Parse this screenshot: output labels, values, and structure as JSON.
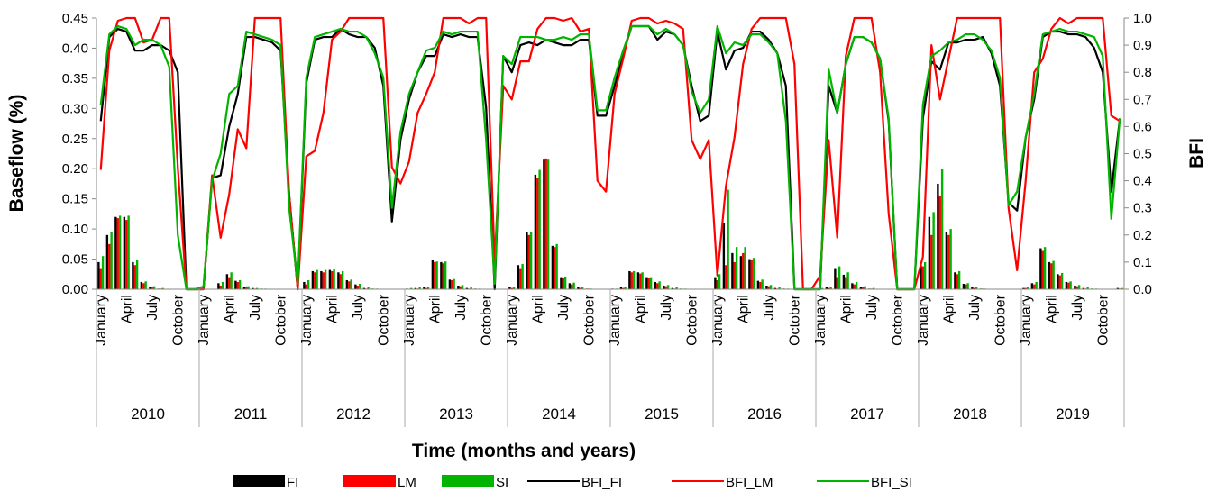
{
  "chart_data": {
    "type": "bar+line",
    "title": "",
    "xlabel": "Time (months and years)",
    "ylabel_left": "Baseflow (%)",
    "ylabel_right": "BFI",
    "ylim_left": [
      0,
      0.45
    ],
    "ylim_right": [
      0,
      1.0
    ],
    "yticks_left": [
      "0.00",
      "0.05",
      "0.10",
      "0.15",
      "0.20",
      "0.25",
      "0.30",
      "0.35",
      "0.40",
      "0.45"
    ],
    "yticks_right": [
      "0.0",
      "0.1",
      "0.2",
      "0.3",
      "0.4",
      "0.5",
      "0.6",
      "0.7",
      "0.8",
      "0.9",
      "1.0"
    ],
    "grid": false,
    "legend_position": "bottom",
    "years": [
      "2010",
      "2011",
      "2012",
      "2013",
      "2014",
      "2015",
      "2016",
      "2017",
      "2018",
      "2019"
    ],
    "month_labels": [
      "January",
      "April",
      "July",
      "October"
    ],
    "colors": {
      "FI": "#000000",
      "LM": "#ff0000",
      "SI": "#00b400"
    },
    "bar_series": [
      {
        "name": "FI",
        "axis": "left",
        "values": [
          0.045,
          0.09,
          0.12,
          0.12,
          0.045,
          0.012,
          0.004,
          0.001,
          0,
          0,
          0,
          0,
          0,
          0,
          0.01,
          0.025,
          0.014,
          0.004,
          0.002,
          0.001,
          0,
          0,
          0,
          0,
          0.012,
          0.03,
          0.03,
          0.032,
          0.028,
          0.015,
          0.008,
          0.002,
          0.001,
          0,
          0,
          0,
          0.001,
          0.002,
          0.003,
          0.048,
          0.045,
          0.016,
          0.006,
          0.002,
          0.001,
          0,
          0,
          0,
          0.003,
          0.04,
          0.095,
          0.19,
          0.215,
          0.072,
          0.02,
          0.01,
          0.003,
          0.001,
          0,
          0,
          0.001,
          0.003,
          0.03,
          0.028,
          0.02,
          0.012,
          0.006,
          0.002,
          0.001,
          0,
          0,
          0,
          0.02,
          0.11,
          0.06,
          0.055,
          0.05,
          0.014,
          0.006,
          0.002,
          0.001,
          0,
          0,
          0,
          0.001,
          0.003,
          0.035,
          0.024,
          0.01,
          0.004,
          0.001,
          0,
          0,
          0,
          0,
          0,
          0.04,
          0.12,
          0.175,
          0.095,
          0.028,
          0.009,
          0.003,
          0.001,
          0,
          0,
          0,
          0,
          0.002,
          0.01,
          0.068,
          0.045,
          0.025,
          0.012,
          0.006,
          0.002,
          0.001,
          0,
          0,
          0.002
        ]
      },
      {
        "name": "LM",
        "axis": "left",
        "values": [
          0.035,
          0.075,
          0.118,
          0.115,
          0.04,
          0.01,
          0.003,
          0.001,
          0,
          0,
          0,
          0,
          0,
          0,
          0.006,
          0.02,
          0.012,
          0.003,
          0.001,
          0,
          0,
          0,
          0,
          0,
          0.008,
          0.028,
          0.028,
          0.03,
          0.025,
          0.013,
          0.006,
          0.001,
          0,
          0,
          0,
          0,
          0,
          0.001,
          0.002,
          0.045,
          0.043,
          0.015,
          0.005,
          0.001,
          0,
          0,
          0,
          0,
          0.002,
          0.035,
          0.09,
          0.185,
          0.217,
          0.07,
          0.018,
          0.008,
          0.002,
          0.001,
          0,
          0,
          0,
          0.002,
          0.028,
          0.026,
          0.018,
          0.01,
          0.005,
          0.001,
          0,
          0,
          0,
          0,
          0.015,
          0.04,
          0.045,
          0.06,
          0.048,
          0.012,
          0.005,
          0.001,
          0,
          0,
          0,
          0,
          0,
          0.002,
          0.02,
          0.02,
          0.008,
          0.003,
          0.001,
          0,
          0,
          0,
          0,
          0,
          0.038,
          0.09,
          0.155,
          0.09,
          0.025,
          0.008,
          0.002,
          0.001,
          0,
          0,
          0,
          0,
          0.002,
          0.008,
          0.065,
          0.043,
          0.023,
          0.011,
          0.005,
          0.001,
          0,
          0,
          0,
          0.001
        ]
      },
      {
        "name": "SI",
        "axis": "left",
        "values": [
          0.055,
          0.095,
          0.122,
          0.122,
          0.048,
          0.013,
          0.005,
          0.002,
          0,
          0,
          0,
          0,
          0,
          0,
          0.012,
          0.028,
          0.015,
          0.005,
          0.002,
          0.001,
          0,
          0,
          0,
          0,
          0.015,
          0.032,
          0.032,
          0.033,
          0.03,
          0.016,
          0.009,
          0.003,
          0.001,
          0,
          0,
          0,
          0.002,
          0.003,
          0.004,
          0.046,
          0.046,
          0.017,
          0.007,
          0.003,
          0.001,
          0,
          0,
          0,
          0.004,
          0.042,
          0.095,
          0.198,
          0.215,
          0.075,
          0.021,
          0.011,
          0.004,
          0.001,
          0,
          0,
          0.001,
          0.004,
          0.03,
          0.028,
          0.02,
          0.013,
          0.007,
          0.003,
          0.001,
          0,
          0,
          0,
          0.025,
          0.165,
          0.07,
          0.07,
          0.052,
          0.016,
          0.007,
          0.003,
          0.001,
          0,
          0,
          0,
          0.002,
          0.004,
          0.038,
          0.028,
          0.012,
          0.005,
          0.002,
          0,
          0,
          0,
          0,
          0,
          0.045,
          0.128,
          0.2,
          0.1,
          0.03,
          0.01,
          0.004,
          0.001,
          0,
          0,
          0,
          0,
          0.003,
          0.012,
          0.07,
          0.047,
          0.027,
          0.013,
          0.007,
          0.003,
          0.001,
          0,
          0,
          0.002
        ]
      }
    ],
    "line_series": [
      {
        "name": "BFI_FI",
        "axis": "right",
        "values": [
          0.62,
          0.93,
          0.96,
          0.95,
          0.88,
          0.88,
          0.9,
          0.9,
          0.88,
          0.8,
          0,
          0,
          0,
          0.41,
          0.42,
          0.6,
          0.72,
          0.93,
          0.93,
          0.92,
          0.91,
          0.88,
          0.35,
          0,
          0.76,
          0.92,
          0.93,
          0.93,
          0.96,
          0.94,
          0.93,
          0.93,
          0.89,
          0.75,
          0.25,
          0.55,
          0.7,
          0.8,
          0.86,
          0.86,
          0.94,
          0.93,
          0.94,
          0.93,
          0.93,
          0.67,
          0,
          0.86,
          0.8,
          0.9,
          0.91,
          0.9,
          0.92,
          0.91,
          0.9,
          0.9,
          0.92,
          0.92,
          0.64,
          0.64,
          0.75,
          0.87,
          0.97,
          0.97,
          0.97,
          0.92,
          0.95,
          0.94,
          0.9,
          0.75,
          0.62,
          0.64,
          0.95,
          0.81,
          0.88,
          0.89,
          0.95,
          0.95,
          0.92,
          0.87,
          0.75,
          0,
          0,
          0,
          0,
          0.75,
          0.65,
          0.83,
          0.93,
          0.93,
          0.91,
          0.85,
          0.62,
          0,
          0,
          0,
          0.63,
          0.84,
          0.81,
          0.91,
          0.91,
          0.92,
          0.92,
          0.93,
          0.87,
          0.75,
          0.32,
          0.29,
          0.56,
          0.7,
          0.93,
          0.95,
          0.95,
          0.94,
          0.94,
          0.93,
          0.89,
          0.8,
          0.36,
          0.63
        ]
      },
      {
        "name": "BFI_LM",
        "axis": "right",
        "values": [
          0.44,
          0.88,
          0.99,
          1.0,
          1.0,
          0.91,
          0.92,
          1.0,
          1.0,
          0.45,
          0,
          0,
          0,
          0.42,
          0.19,
          0.35,
          0.59,
          0.52,
          1.0,
          1.0,
          1.0,
          1.0,
          0.35,
          0,
          0.49,
          0.51,
          0.65,
          0.92,
          0.95,
          1.0,
          1.0,
          1.0,
          1.0,
          1.0,
          0.45,
          0.39,
          0.47,
          0.65,
          0.72,
          0.8,
          1.0,
          1.0,
          1.0,
          0.98,
          1.0,
          1.0,
          0.1,
          0.75,
          0.7,
          0.84,
          0.84,
          0.96,
          1.0,
          1.0,
          0.99,
          1.0,
          0.95,
          0.96,
          0.4,
          0.36,
          0.72,
          0.85,
          0.99,
          1.0,
          1.0,
          0.98,
          0.99,
          0.98,
          0.96,
          0.55,
          0.48,
          0.55,
          0.05,
          0.38,
          0.56,
          0.83,
          0.96,
          1.0,
          1.0,
          1.0,
          1.0,
          0.83,
          0,
          0,
          0.05,
          0.55,
          0.19,
          0.86,
          1.0,
          1.0,
          1.0,
          0.8,
          0.28,
          0,
          0,
          0,
          0.12,
          0.9,
          0.7,
          0.85,
          1.0,
          1.0,
          1.0,
          1.0,
          1.0,
          1.0,
          0.3,
          0.07,
          0.4,
          0.8,
          0.85,
          0.96,
          1.0,
          0.98,
          1.0,
          1.0,
          1.0,
          1.0,
          0.64,
          0.62
        ]
      },
      {
        "name": "BFI_SI",
        "axis": "right",
        "values": [
          0.68,
          0.94,
          0.97,
          0.96,
          0.9,
          0.92,
          0.92,
          0.9,
          0.82,
          0.2,
          0,
          0,
          0.01,
          0.4,
          0.5,
          0.72,
          0.75,
          0.95,
          0.94,
          0.93,
          0.92,
          0.9,
          0.3,
          0.02,
          0.78,
          0.93,
          0.94,
          0.95,
          0.96,
          0.95,
          0.95,
          0.93,
          0.87,
          0.78,
          0.3,
          0.58,
          0.72,
          0.8,
          0.88,
          0.89,
          0.95,
          0.94,
          0.95,
          0.95,
          0.95,
          0.55,
          0.02,
          0.86,
          0.83,
          0.93,
          0.93,
          0.93,
          0.92,
          0.92,
          0.93,
          0.92,
          0.94,
          0.94,
          0.66,
          0.66,
          0.78,
          0.88,
          0.97,
          0.97,
          0.97,
          0.94,
          0.96,
          0.94,
          0.9,
          0.73,
          0.65,
          0.7,
          0.97,
          0.87,
          0.91,
          0.9,
          0.94,
          0.94,
          0.91,
          0.87,
          0.62,
          0,
          0,
          0,
          0,
          0.81,
          0.65,
          0.83,
          0.93,
          0.93,
          0.91,
          0.85,
          0.63,
          0,
          0,
          0,
          0.68,
          0.86,
          0.88,
          0.91,
          0.92,
          0.94,
          0.94,
          0.92,
          0.88,
          0.78,
          0.31,
          0.36,
          0.56,
          0.72,
          0.94,
          0.95,
          0.96,
          0.95,
          0.95,
          0.94,
          0.93,
          0.86,
          0.26,
          0.63
        ]
      }
    ]
  },
  "legend": [
    {
      "label": "FI",
      "kind": "bar",
      "color": "#000000"
    },
    {
      "label": "LM",
      "kind": "bar",
      "color": "#ff0000"
    },
    {
      "label": "SI",
      "kind": "bar",
      "color": "#00b400"
    },
    {
      "label": "BFI_FI",
      "kind": "line",
      "color": "#000000"
    },
    {
      "label": "BFI_LM",
      "kind": "line",
      "color": "#ff0000"
    },
    {
      "label": "BFI_SI",
      "kind": "line",
      "color": "#00b400"
    }
  ]
}
